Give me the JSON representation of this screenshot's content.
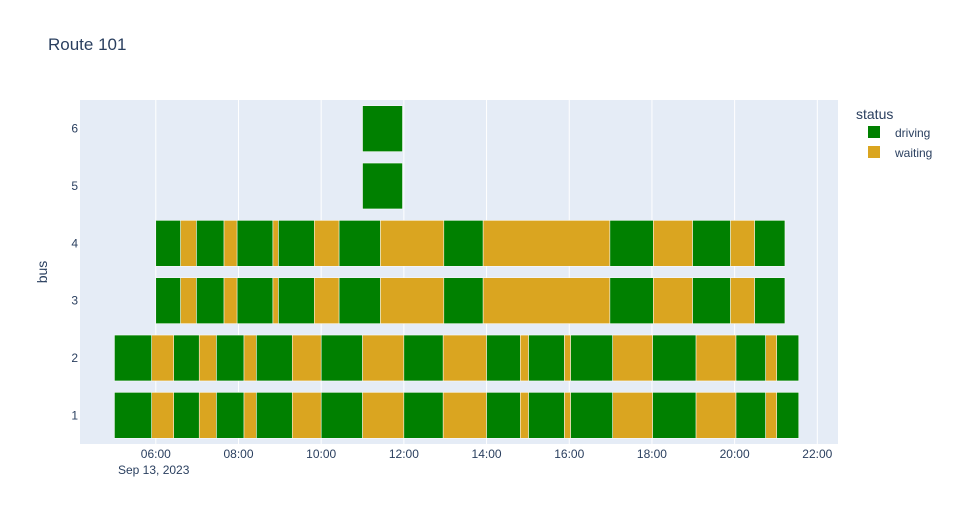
{
  "chart_data": {
    "type": "bar",
    "subtype": "timeline",
    "title": "Route 101",
    "xlabel": "",
    "ylabel": "bus",
    "date_label": "Sep 13, 2023",
    "x_ticks": [
      "06:00",
      "08:00",
      "10:00",
      "12:00",
      "14:00",
      "16:00",
      "18:00",
      "20:00",
      "22:00"
    ],
    "x_range": [
      "04:10",
      "22:30"
    ],
    "categories": [
      "1",
      "2",
      "3",
      "4",
      "5",
      "6"
    ],
    "grid": true,
    "legend": {
      "title": "status",
      "position": "top-right",
      "entries": [
        {
          "name": "driving",
          "color": "#008000"
        },
        {
          "name": "waiting",
          "color": "#DAA520"
        }
      ]
    },
    "series": [
      {
        "bus": "1",
        "segments": [
          {
            "start": "05:00",
            "end": "05:54",
            "status": "driving"
          },
          {
            "start": "05:54",
            "end": "06:26",
            "status": "waiting"
          },
          {
            "start": "06:26",
            "end": "07:03",
            "status": "driving"
          },
          {
            "start": "07:03",
            "end": "07:28",
            "status": "waiting"
          },
          {
            "start": "07:28",
            "end": "08:08",
            "status": "driving"
          },
          {
            "start": "08:08",
            "end": "08:26",
            "status": "waiting"
          },
          {
            "start": "08:26",
            "end": "09:18",
            "status": "driving"
          },
          {
            "start": "09:18",
            "end": "10:00",
            "status": "waiting"
          },
          {
            "start": "10:00",
            "end": "11:00",
            "status": "driving"
          },
          {
            "start": "11:00",
            "end": "12:00",
            "status": "waiting"
          },
          {
            "start": "12:00",
            "end": "12:57",
            "status": "driving"
          },
          {
            "start": "12:57",
            "end": "14:00",
            "status": "waiting"
          },
          {
            "start": "14:00",
            "end": "14:49",
            "status": "driving"
          },
          {
            "start": "14:49",
            "end": "15:01",
            "status": "waiting"
          },
          {
            "start": "15:01",
            "end": "15:53",
            "status": "driving"
          },
          {
            "start": "15:53",
            "end": "16:02",
            "status": "waiting"
          },
          {
            "start": "16:02",
            "end": "17:03",
            "status": "driving"
          },
          {
            "start": "17:03",
            "end": "18:01",
            "status": "waiting"
          },
          {
            "start": "18:01",
            "end": "19:04",
            "status": "driving"
          },
          {
            "start": "19:04",
            "end": "20:02",
            "status": "waiting"
          },
          {
            "start": "20:02",
            "end": "20:45",
            "status": "driving"
          },
          {
            "start": "20:45",
            "end": "21:01",
            "status": "waiting"
          },
          {
            "start": "21:01",
            "end": "21:33",
            "status": "driving"
          }
        ]
      },
      {
        "bus": "2",
        "segments": [
          {
            "start": "05:00",
            "end": "05:54",
            "status": "driving"
          },
          {
            "start": "05:54",
            "end": "06:26",
            "status": "waiting"
          },
          {
            "start": "06:26",
            "end": "07:03",
            "status": "driving"
          },
          {
            "start": "07:03",
            "end": "07:28",
            "status": "waiting"
          },
          {
            "start": "07:28",
            "end": "08:08",
            "status": "driving"
          },
          {
            "start": "08:08",
            "end": "08:26",
            "status": "waiting"
          },
          {
            "start": "08:26",
            "end": "09:18",
            "status": "driving"
          },
          {
            "start": "09:18",
            "end": "10:00",
            "status": "waiting"
          },
          {
            "start": "10:00",
            "end": "11:00",
            "status": "driving"
          },
          {
            "start": "11:00",
            "end": "12:00",
            "status": "waiting"
          },
          {
            "start": "12:00",
            "end": "12:57",
            "status": "driving"
          },
          {
            "start": "12:57",
            "end": "14:00",
            "status": "waiting"
          },
          {
            "start": "14:00",
            "end": "14:49",
            "status": "driving"
          },
          {
            "start": "14:49",
            "end": "15:01",
            "status": "waiting"
          },
          {
            "start": "15:01",
            "end": "15:53",
            "status": "driving"
          },
          {
            "start": "15:53",
            "end": "16:02",
            "status": "waiting"
          },
          {
            "start": "16:02",
            "end": "17:03",
            "status": "driving"
          },
          {
            "start": "17:03",
            "end": "18:01",
            "status": "waiting"
          },
          {
            "start": "18:01",
            "end": "19:04",
            "status": "driving"
          },
          {
            "start": "19:04",
            "end": "20:02",
            "status": "waiting"
          },
          {
            "start": "20:02",
            "end": "20:45",
            "status": "driving"
          },
          {
            "start": "20:45",
            "end": "21:01",
            "status": "waiting"
          },
          {
            "start": "21:01",
            "end": "21:33",
            "status": "driving"
          }
        ]
      },
      {
        "bus": "3",
        "segments": [
          {
            "start": "06:00",
            "end": "06:36",
            "status": "driving"
          },
          {
            "start": "06:36",
            "end": "06:59",
            "status": "waiting"
          },
          {
            "start": "06:59",
            "end": "07:39",
            "status": "driving"
          },
          {
            "start": "07:39",
            "end": "07:58",
            "status": "waiting"
          },
          {
            "start": "07:58",
            "end": "08:50",
            "status": "driving"
          },
          {
            "start": "08:50",
            "end": "08:58",
            "status": "waiting"
          },
          {
            "start": "08:58",
            "end": "09:50",
            "status": "driving"
          },
          {
            "start": "09:50",
            "end": "10:26",
            "status": "waiting"
          },
          {
            "start": "10:26",
            "end": "11:26",
            "status": "driving"
          },
          {
            "start": "11:26",
            "end": "12:58",
            "status": "waiting"
          },
          {
            "start": "12:58",
            "end": "13:55",
            "status": "driving"
          },
          {
            "start": "13:55",
            "end": "16:59",
            "status": "waiting"
          },
          {
            "start": "16:59",
            "end": "18:02",
            "status": "driving"
          },
          {
            "start": "18:02",
            "end": "18:59",
            "status": "waiting"
          },
          {
            "start": "18:59",
            "end": "19:54",
            "status": "driving"
          },
          {
            "start": "19:54",
            "end": "20:29",
            "status": "waiting"
          },
          {
            "start": "20:29",
            "end": "21:13",
            "status": "driving"
          }
        ]
      },
      {
        "bus": "4",
        "segments": [
          {
            "start": "06:00",
            "end": "06:36",
            "status": "driving"
          },
          {
            "start": "06:36",
            "end": "06:59",
            "status": "waiting"
          },
          {
            "start": "06:59",
            "end": "07:39",
            "status": "driving"
          },
          {
            "start": "07:39",
            "end": "07:58",
            "status": "waiting"
          },
          {
            "start": "07:58",
            "end": "08:50",
            "status": "driving"
          },
          {
            "start": "08:50",
            "end": "08:58",
            "status": "waiting"
          },
          {
            "start": "08:58",
            "end": "09:50",
            "status": "driving"
          },
          {
            "start": "09:50",
            "end": "10:26",
            "status": "waiting"
          },
          {
            "start": "10:26",
            "end": "11:26",
            "status": "driving"
          },
          {
            "start": "11:26",
            "end": "12:58",
            "status": "waiting"
          },
          {
            "start": "12:58",
            "end": "13:55",
            "status": "driving"
          },
          {
            "start": "13:55",
            "end": "16:59",
            "status": "waiting"
          },
          {
            "start": "16:59",
            "end": "18:02",
            "status": "driving"
          },
          {
            "start": "18:02",
            "end": "18:59",
            "status": "waiting"
          },
          {
            "start": "18:59",
            "end": "19:54",
            "status": "driving"
          },
          {
            "start": "19:54",
            "end": "20:29",
            "status": "waiting"
          },
          {
            "start": "20:29",
            "end": "21:13",
            "status": "driving"
          }
        ]
      },
      {
        "bus": "5",
        "segments": [
          {
            "start": "11:00",
            "end": "11:58",
            "status": "driving"
          }
        ]
      },
      {
        "bus": "6",
        "segments": [
          {
            "start": "11:00",
            "end": "11:58",
            "status": "driving"
          }
        ]
      }
    ]
  }
}
